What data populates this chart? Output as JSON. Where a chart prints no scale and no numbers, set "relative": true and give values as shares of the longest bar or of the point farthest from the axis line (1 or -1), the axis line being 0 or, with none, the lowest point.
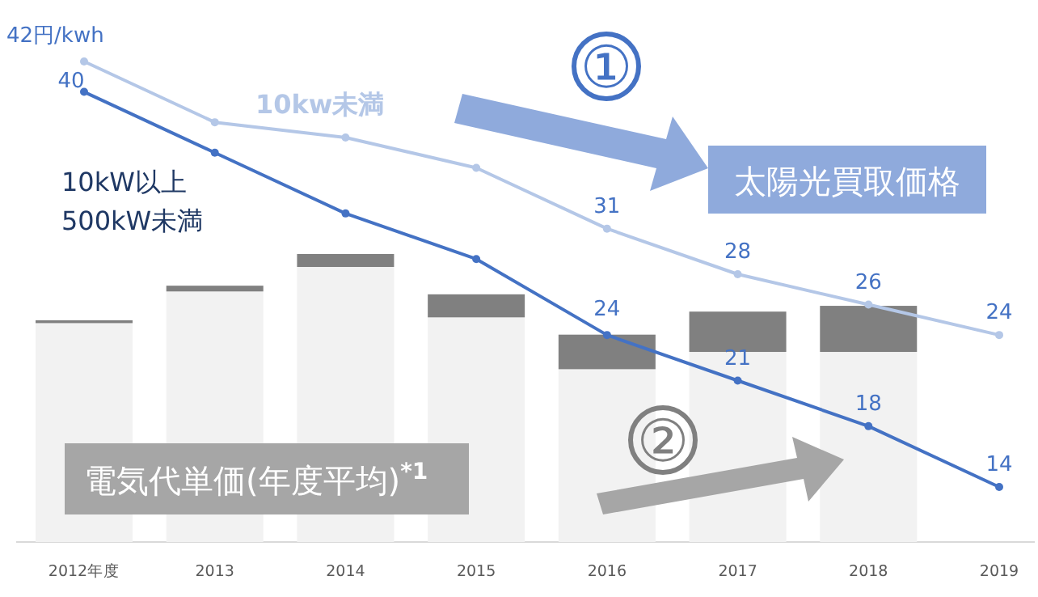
{
  "chart_data": [
    {
      "type": "bar",
      "categories": [
        "2012年度",
        "2013",
        "2014",
        "2015",
        "2016",
        "2017",
        "2018",
        "2019"
      ],
      "stacked": true,
      "relative": true,
      "series": [
        {
          "name": "電気代単価(年度平均)$^{*1}$",
          "color": "#f2f2f2",
          "values": [
            0.76,
            0.87,
            0.955,
            0.78,
            0.6,
            0.66,
            0.66,
            null
          ]
        },
        {
          "color": "#808080",
          "values": [
            0.01,
            0.02,
            0.045,
            0.08,
            0.12,
            0.14,
            0.16,
            null
          ]
        }
      ]
    },
    {
      "type": "line",
      "categories": [
        null,
        null,
        null,
        null,
        null,
        null,
        null,
        null
      ],
      "marker": "circle",
      "series": [
        {
          "name": "10kw未満",
          "color": "#b4c7e7",
          "values": [
            42,
            38,
            37,
            35,
            31,
            28,
            26,
            24
          ],
          "value_labels": [
            "42円/kwh",
            null,
            null,
            null,
            "31",
            "28",
            "26",
            "24"
          ]
        },
        {
          "name": "10kW以上\n500kW未満",
          "color": "#4472c4",
          "values": [
            40,
            36,
            32,
            29,
            24,
            21,
            18,
            14
          ],
          "value_labels": [
            "40",
            null,
            null,
            null,
            "24",
            "21",
            "18",
            "14"
          ]
        }
      ],
      "annotations": [
        "①",
        "太陽光買取価格",
        "②"
      ]
    }
  ]
}
